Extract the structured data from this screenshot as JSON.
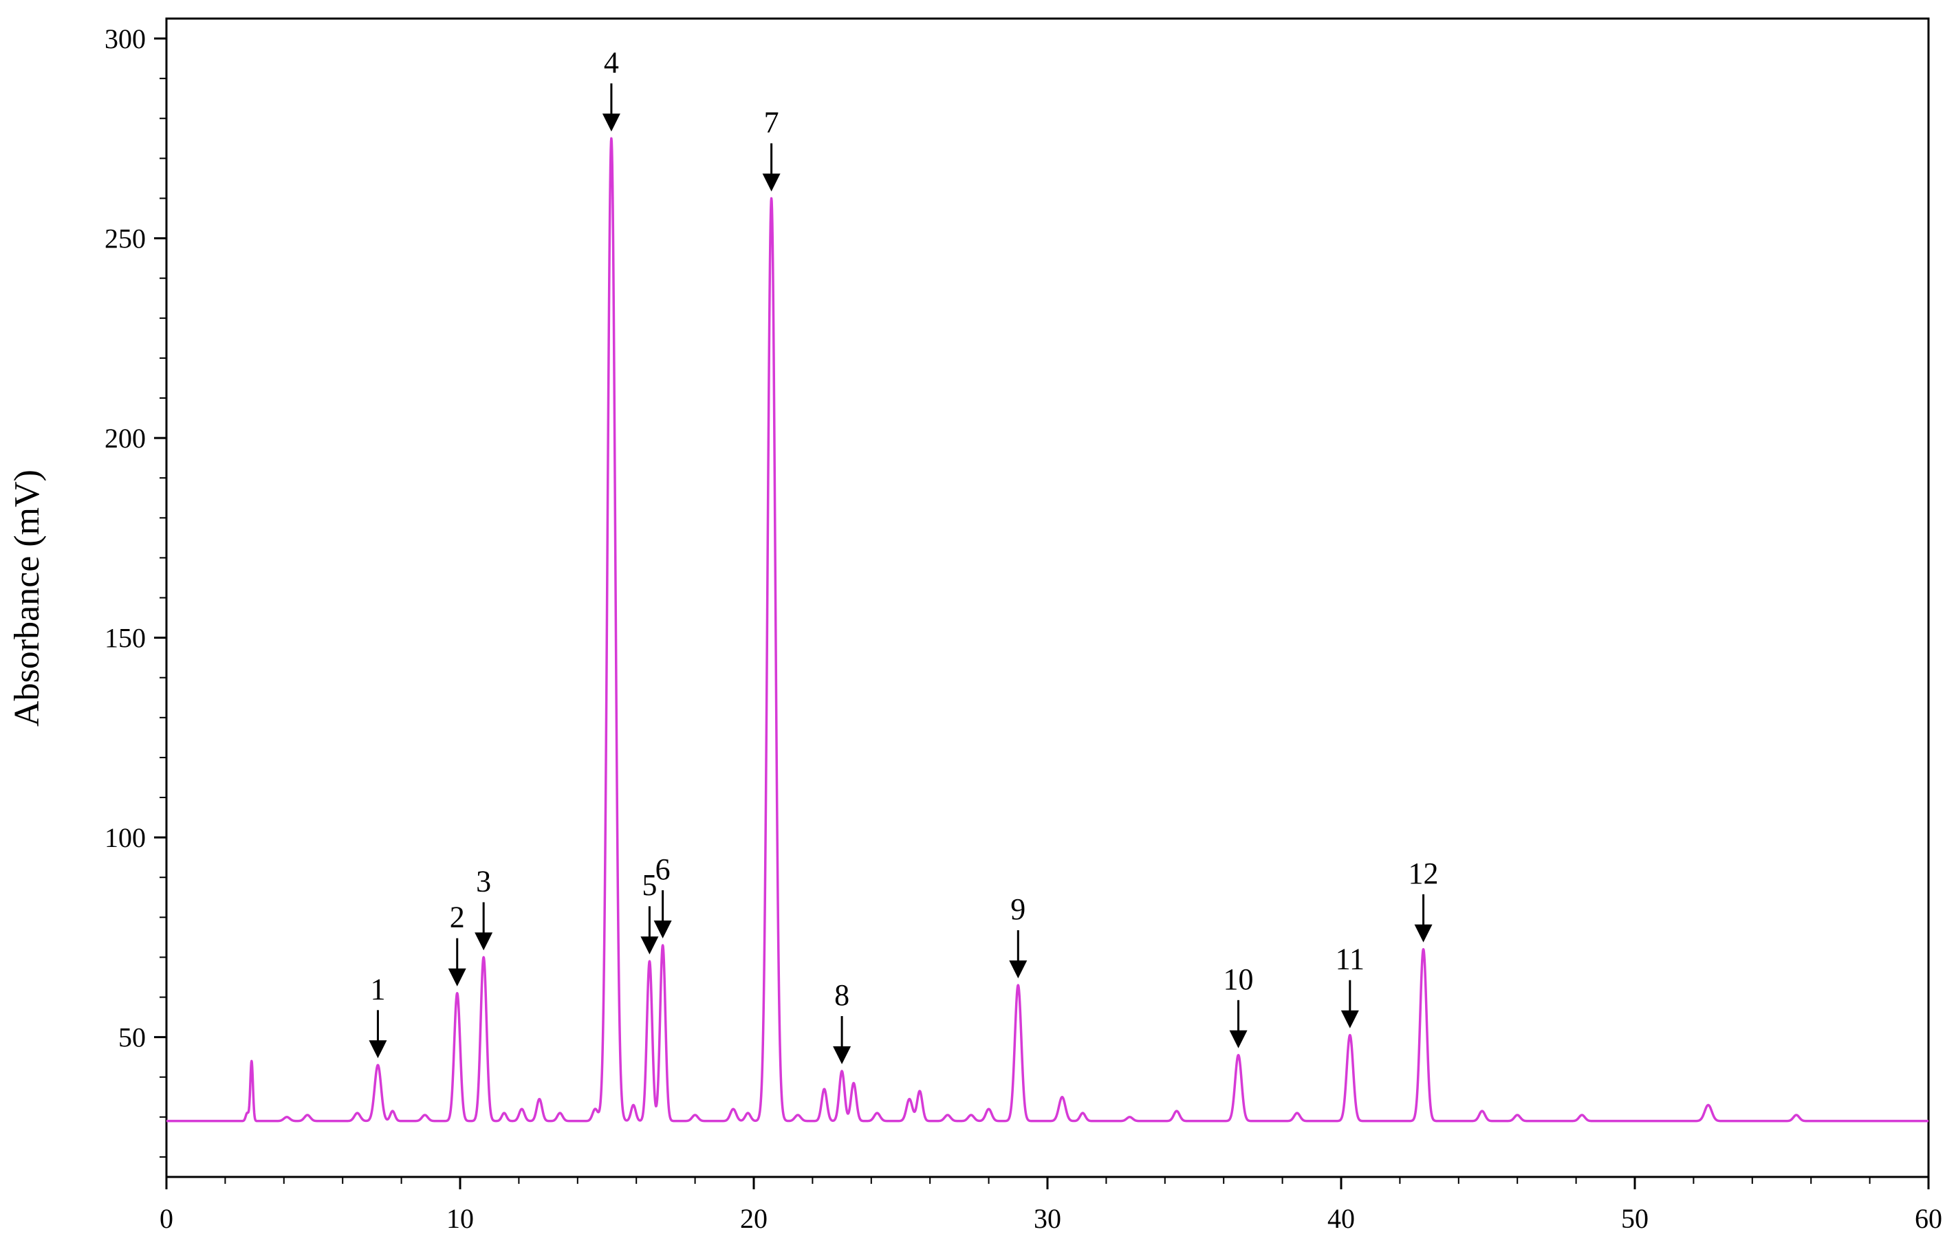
{
  "chart_data": {
    "type": "line",
    "title": "",
    "xlabel": "",
    "ylabel": "Absorbance  (mV)",
    "xlim": [
      0,
      60
    ],
    "ylim": [
      15,
      305
    ],
    "x_ticks": [
      "0",
      "10",
      "20",
      "30",
      "40",
      "50",
      "60"
    ],
    "y_ticks": [
      "50",
      "100",
      "150",
      "200",
      "250",
      "300"
    ],
    "grid": false,
    "legend": "none",
    "line_color": "#d63ad6",
    "baseline": 29,
    "peaks": [
      {
        "label": "",
        "x": 2.75,
        "y": 31,
        "width": 0.05
      },
      {
        "label": "",
        "x": 2.9,
        "y": 44,
        "width": 0.045
      },
      {
        "label": "",
        "x": 4.1,
        "y": 30,
        "width": 0.1
      },
      {
        "label": "",
        "x": 4.8,
        "y": 30.5,
        "width": 0.1
      },
      {
        "label": "",
        "x": 6.5,
        "y": 31,
        "width": 0.1
      },
      {
        "label": "1",
        "x": 7.2,
        "y": 43,
        "width": 0.11
      },
      {
        "label": "",
        "x": 7.7,
        "y": 31.5,
        "width": 0.08
      },
      {
        "label": "",
        "x": 8.8,
        "y": 30.5,
        "width": 0.1
      },
      {
        "label": "2",
        "x": 9.9,
        "y": 61,
        "width": 0.1
      },
      {
        "label": "3",
        "x": 10.8,
        "y": 70,
        "width": 0.1
      },
      {
        "label": "",
        "x": 11.5,
        "y": 31,
        "width": 0.08
      },
      {
        "label": "",
        "x": 12.1,
        "y": 32,
        "width": 0.09
      },
      {
        "label": "",
        "x": 12.7,
        "y": 34.5,
        "width": 0.09
      },
      {
        "label": "",
        "x": 13.4,
        "y": 31,
        "width": 0.09
      },
      {
        "label": "",
        "x": 14.6,
        "y": 32,
        "width": 0.09
      },
      {
        "label": "4",
        "x": 15.15,
        "y": 275,
        "width": 0.13
      },
      {
        "label": "",
        "x": 15.9,
        "y": 33,
        "width": 0.08
      },
      {
        "label": "5",
        "x": 16.45,
        "y": 69,
        "width": 0.09
      },
      {
        "label": "6",
        "x": 16.9,
        "y": 73,
        "width": 0.09
      },
      {
        "label": "",
        "x": 18.0,
        "y": 30.5,
        "width": 0.1
      },
      {
        "label": "",
        "x": 19.3,
        "y": 32,
        "width": 0.1
      },
      {
        "label": "",
        "x": 19.8,
        "y": 31,
        "width": 0.09
      },
      {
        "label": "7",
        "x": 20.6,
        "y": 260,
        "width": 0.13
      },
      {
        "label": "",
        "x": 21.5,
        "y": 30.5,
        "width": 0.1
      },
      {
        "label": "",
        "x": 22.4,
        "y": 37,
        "width": 0.09
      },
      {
        "label": "8",
        "x": 23.0,
        "y": 41.5,
        "width": 0.09
      },
      {
        "label": "",
        "x": 23.4,
        "y": 38.5,
        "width": 0.09
      },
      {
        "label": "",
        "x": 24.2,
        "y": 31,
        "width": 0.1
      },
      {
        "label": "",
        "x": 25.3,
        "y": 34.5,
        "width": 0.1
      },
      {
        "label": "",
        "x": 25.65,
        "y": 36.5,
        "width": 0.09
      },
      {
        "label": "",
        "x": 26.6,
        "y": 30.5,
        "width": 0.1
      },
      {
        "label": "",
        "x": 27.4,
        "y": 30.5,
        "width": 0.1
      },
      {
        "label": "",
        "x": 28.0,
        "y": 32,
        "width": 0.1
      },
      {
        "label": "9",
        "x": 29.0,
        "y": 63,
        "width": 0.11
      },
      {
        "label": "",
        "x": 30.5,
        "y": 35,
        "width": 0.11
      },
      {
        "label": "",
        "x": 31.2,
        "y": 31,
        "width": 0.09
      },
      {
        "label": "",
        "x": 32.8,
        "y": 30,
        "width": 0.1
      },
      {
        "label": "",
        "x": 34.4,
        "y": 31.5,
        "width": 0.1
      },
      {
        "label": "10",
        "x": 36.5,
        "y": 45.5,
        "width": 0.11
      },
      {
        "label": "",
        "x": 38.5,
        "y": 31,
        "width": 0.1
      },
      {
        "label": "11",
        "x": 40.3,
        "y": 50.5,
        "width": 0.11
      },
      {
        "label": "12",
        "x": 42.8,
        "y": 72,
        "width": 0.11
      },
      {
        "label": "",
        "x": 44.8,
        "y": 31.5,
        "width": 0.1
      },
      {
        "label": "",
        "x": 46.0,
        "y": 30.5,
        "width": 0.1
      },
      {
        "label": "",
        "x": 48.2,
        "y": 30.5,
        "width": 0.1
      },
      {
        "label": "",
        "x": 52.5,
        "y": 33,
        "width": 0.12
      },
      {
        "label": "",
        "x": 55.5,
        "y": 30.5,
        "width": 0.1
      }
    ]
  }
}
